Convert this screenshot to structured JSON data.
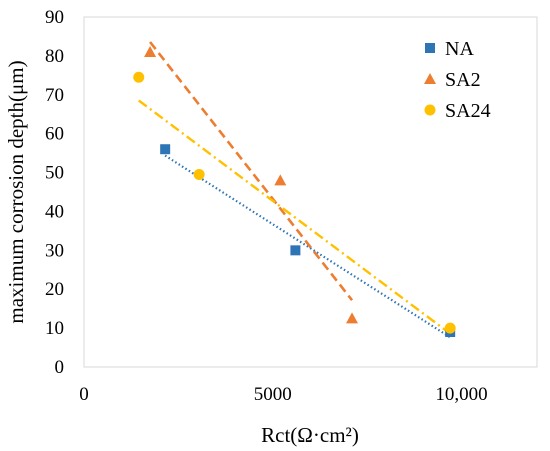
{
  "chart_data": {
    "type": "scatter",
    "xlabel": "Rct(Ω·cm²)",
    "ylabel": "maximum corrosion depth(μm)",
    "xlim": [
      0,
      12000
    ],
    "ylim": [
      0,
      90
    ],
    "x_ticks": [
      0,
      5000,
      10000
    ],
    "x_tick_labels": [
      "0",
      "5000",
      "10,000"
    ],
    "y_ticks": [
      0,
      10,
      20,
      30,
      40,
      50,
      60,
      70,
      80,
      90
    ],
    "y_tick_labels": [
      "0",
      "10",
      "20",
      "30",
      "40",
      "50",
      "60",
      "70",
      "80",
      "90"
    ],
    "grid": false,
    "legend_position": "top-right",
    "series": [
      {
        "name": "NA",
        "marker": "square",
        "color": "#2E75B6",
        "trendline_style": "dotted",
        "points": [
          [
            2150,
            56
          ],
          [
            5600,
            30
          ],
          [
            9700,
            9
          ]
        ]
      },
      {
        "name": "SA2",
        "marker": "triangle",
        "color": "#ED7D31",
        "trendline_style": "dashed",
        "points": [
          [
            1750,
            81
          ],
          [
            5200,
            48
          ],
          [
            7100,
            12.5
          ]
        ]
      },
      {
        "name": "SA24",
        "marker": "circle",
        "color": "#FFC000",
        "trendline_style": "dash-dot",
        "points": [
          [
            1450,
            74.5
          ],
          [
            3050,
            49.5
          ],
          [
            9700,
            10
          ]
        ]
      }
    ]
  }
}
